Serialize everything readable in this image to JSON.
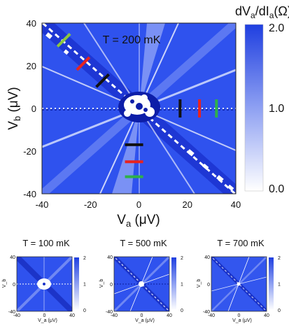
{
  "chart_data": [
    {
      "type": "heatmap",
      "title": "T = 200 mK",
      "xlabel_main": "V",
      "xlabel_sub": "a",
      "xlabel_unit": " (μV)",
      "ylabel_main": "V",
      "ylabel_sub": "b",
      "ylabel_unit": " (μV)",
      "xlim": [
        -40,
        40
      ],
      "ylim": [
        -40,
        40
      ],
      "x_ticks": [
        "-40",
        "-20",
        "0",
        "20",
        "40"
      ],
      "y_ticks": [
        "40",
        "20",
        "0",
        "-20",
        "-40"
      ],
      "colorbar": {
        "label": "dV_a/dI_a(Ω)",
        "label_parts": [
          "dV",
          "a",
          "/dI",
          "a",
          "(Ω)"
        ],
        "range": [
          0.0,
          2.0
        ],
        "ticks": [
          "2.0",
          "1.0",
          "0.0"
        ],
        "color_low": "#ffffff",
        "color_high": "#1f3fe0"
      },
      "cut_markers": [
        {
          "color": "#8dc63f",
          "x": -31,
          "y": 32,
          "orientation": "diagonal"
        },
        {
          "color": "#e8231f",
          "x": -23,
          "y": 21,
          "orientation": "diagonal"
        },
        {
          "color": "#111111",
          "x": -15,
          "y": 13,
          "orientation": "diagonal"
        },
        {
          "color": "#111111",
          "x": 17,
          "y": 0,
          "orientation": "vertical"
        },
        {
          "color": "#e8231f",
          "x": 25,
          "y": 0,
          "orientation": "vertical"
        },
        {
          "color": "#2fb04a",
          "x": 32,
          "y": 0,
          "orientation": "vertical"
        },
        {
          "color": "#111111",
          "x": -2,
          "y": -17,
          "orientation": "horizontal"
        },
        {
          "color": "#e8231f",
          "x": -2,
          "y": -25,
          "orientation": "horizontal"
        },
        {
          "color": "#2fb04a",
          "x": -2,
          "y": -32,
          "orientation": "horizontal"
        }
      ]
    },
    {
      "type": "heatmap",
      "title": "T = 100 mK",
      "xlim": [
        -40,
        40
      ],
      "ylim": [
        -40,
        40
      ],
      "x_ticks": [
        "-40",
        "0",
        "40"
      ],
      "y_ticks": [
        "40",
        "0",
        "-40"
      ],
      "xlabel": "V_a (μV)",
      "ylabel": "V_b",
      "colorbar_ticks": [
        "2",
        "1",
        "0"
      ]
    },
    {
      "type": "heatmap",
      "title": "T = 500 mK",
      "xlim": [
        -40,
        40
      ],
      "ylim": [
        -40,
        40
      ],
      "x_ticks": [
        "-40",
        "0",
        "40"
      ],
      "y_ticks": [
        "40",
        "0",
        "-40"
      ],
      "xlabel": "V_a (μV)",
      "ylabel": "V_b",
      "colorbar_ticks": [
        "2",
        "1",
        "0"
      ]
    },
    {
      "type": "heatmap",
      "title": "T = 700 mK",
      "xlim": [
        -40,
        40
      ],
      "ylim": [
        -40,
        40
      ],
      "x_ticks": [
        "-40",
        "0",
        "40"
      ],
      "y_ticks": [
        "40",
        "0",
        "-40"
      ],
      "xlabel": "V_a (μV)",
      "ylabel": "V_b",
      "colorbar_ticks": [
        "2",
        "1",
        "0"
      ]
    }
  ]
}
